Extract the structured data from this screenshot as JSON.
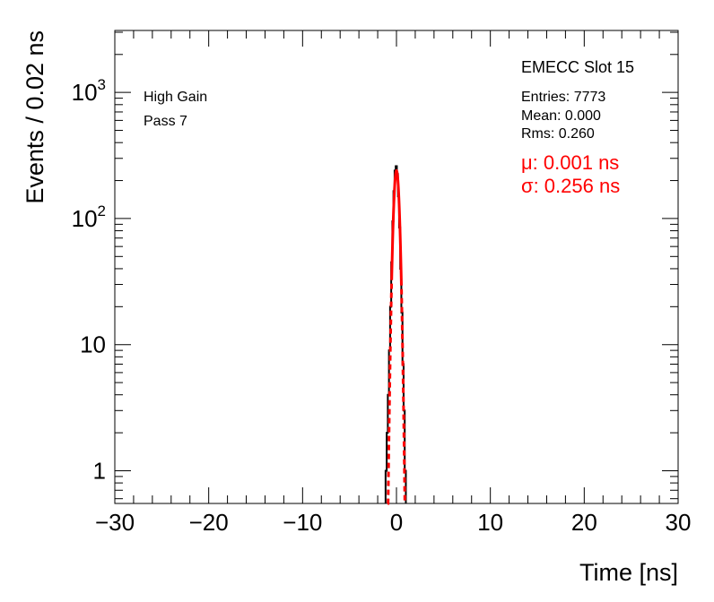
{
  "chart_data": {
    "type": "line",
    "xlabel": "Time [ns]",
    "ylabel": "Events / 0.02 ns",
    "xlim": [
      -30,
      30
    ],
    "ylim": [
      0.55,
      3100
    ],
    "yscale": "log",
    "grid": false,
    "x_ticks": [
      {
        "value": -30,
        "label": "−30"
      },
      {
        "value": -20,
        "label": "−20"
      },
      {
        "value": -10,
        "label": "−10"
      },
      {
        "value": 0,
        "label": "0"
      },
      {
        "value": 10,
        "label": "10"
      },
      {
        "value": 20,
        "label": "20"
      },
      {
        "value": 30,
        "label": "30"
      }
    ],
    "y_ticks": [
      {
        "value": 1,
        "base": "1",
        "exp": ""
      },
      {
        "value": 10,
        "base": "10",
        "exp": ""
      },
      {
        "value": 100,
        "base": "10",
        "exp": "2"
      },
      {
        "value": 1000,
        "base": "10",
        "exp": "3"
      }
    ],
    "histogram": {
      "color": "#000000",
      "x": [
        -1.1,
        -0.98,
        -0.86,
        -0.74,
        -0.62,
        -0.5,
        -0.38,
        -0.26,
        -0.14,
        -0.02,
        0.1,
        0.22,
        0.34,
        0.46,
        0.58,
        0.7,
        0.82,
        0.94
      ],
      "y": [
        1,
        2,
        4,
        9,
        20,
        45,
        95,
        165,
        240,
        260,
        225,
        150,
        85,
        40,
        18,
        7,
        3,
        1
      ]
    },
    "fit": {
      "color": "#ff0000",
      "mean": 0.001,
      "sigma": 0.256,
      "amplitude": 240,
      "x_range": [
        -0.95,
        0.95
      ]
    },
    "annotations": {
      "gain": "High Gain",
      "pass": "Pass 7",
      "title": "EMECC Slot 15",
      "entries": "Entries: 7773",
      "mean": "Mean: 0.000",
      "rms": "Rms: 0.260",
      "fit_mu": "μ: 0.001 ns",
      "fit_sigma": "σ: 0.256 ns",
      "fit_color": "#ff0000"
    }
  }
}
